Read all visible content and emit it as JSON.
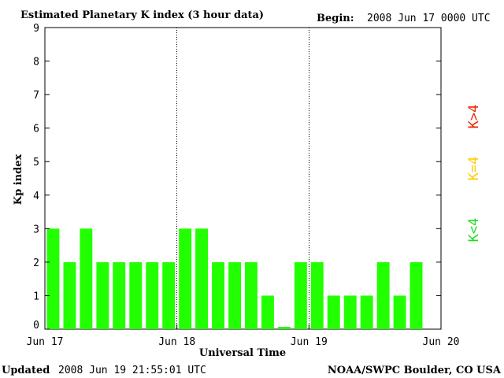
{
  "header": {
    "title": "Estimated Planetary K index (3 hour data)",
    "begin_label": "Begin:",
    "begin_value": "2008 Jun 17 0000 UTC"
  },
  "footer": {
    "updated_label": "Updated",
    "updated_value": "2008 Jun 19 21:55:01 UTC",
    "credit": "NOAA/SWPC Boulder, CO USA"
  },
  "legend": [
    {
      "label": "K<4",
      "color": "#22dd22"
    },
    {
      "label": "K=4",
      "color": "#ffcc00"
    },
    {
      "label": "K>4",
      "color": "#ee2200"
    }
  ],
  "chart_data": {
    "type": "bar",
    "title": "Estimated Planetary K index (3 hour data)",
    "xlabel": "Universal Time",
    "ylabel": "Kp index",
    "ylim": [
      0,
      9
    ],
    "yticks": [
      "0",
      "1",
      "2",
      "3",
      "4",
      "5",
      "6",
      "7",
      "8",
      "9"
    ],
    "xticks": [
      "Jun 17",
      "Jun 18",
      "Jun 19",
      "Jun 20"
    ],
    "bar_color": "#22ff00",
    "values": [
      3,
      2,
      3,
      2,
      2,
      2,
      2,
      2,
      3,
      3,
      2,
      2,
      2,
      1,
      0.07,
      2,
      2,
      1,
      1,
      1,
      2,
      1,
      2
    ],
    "grid": false
  }
}
